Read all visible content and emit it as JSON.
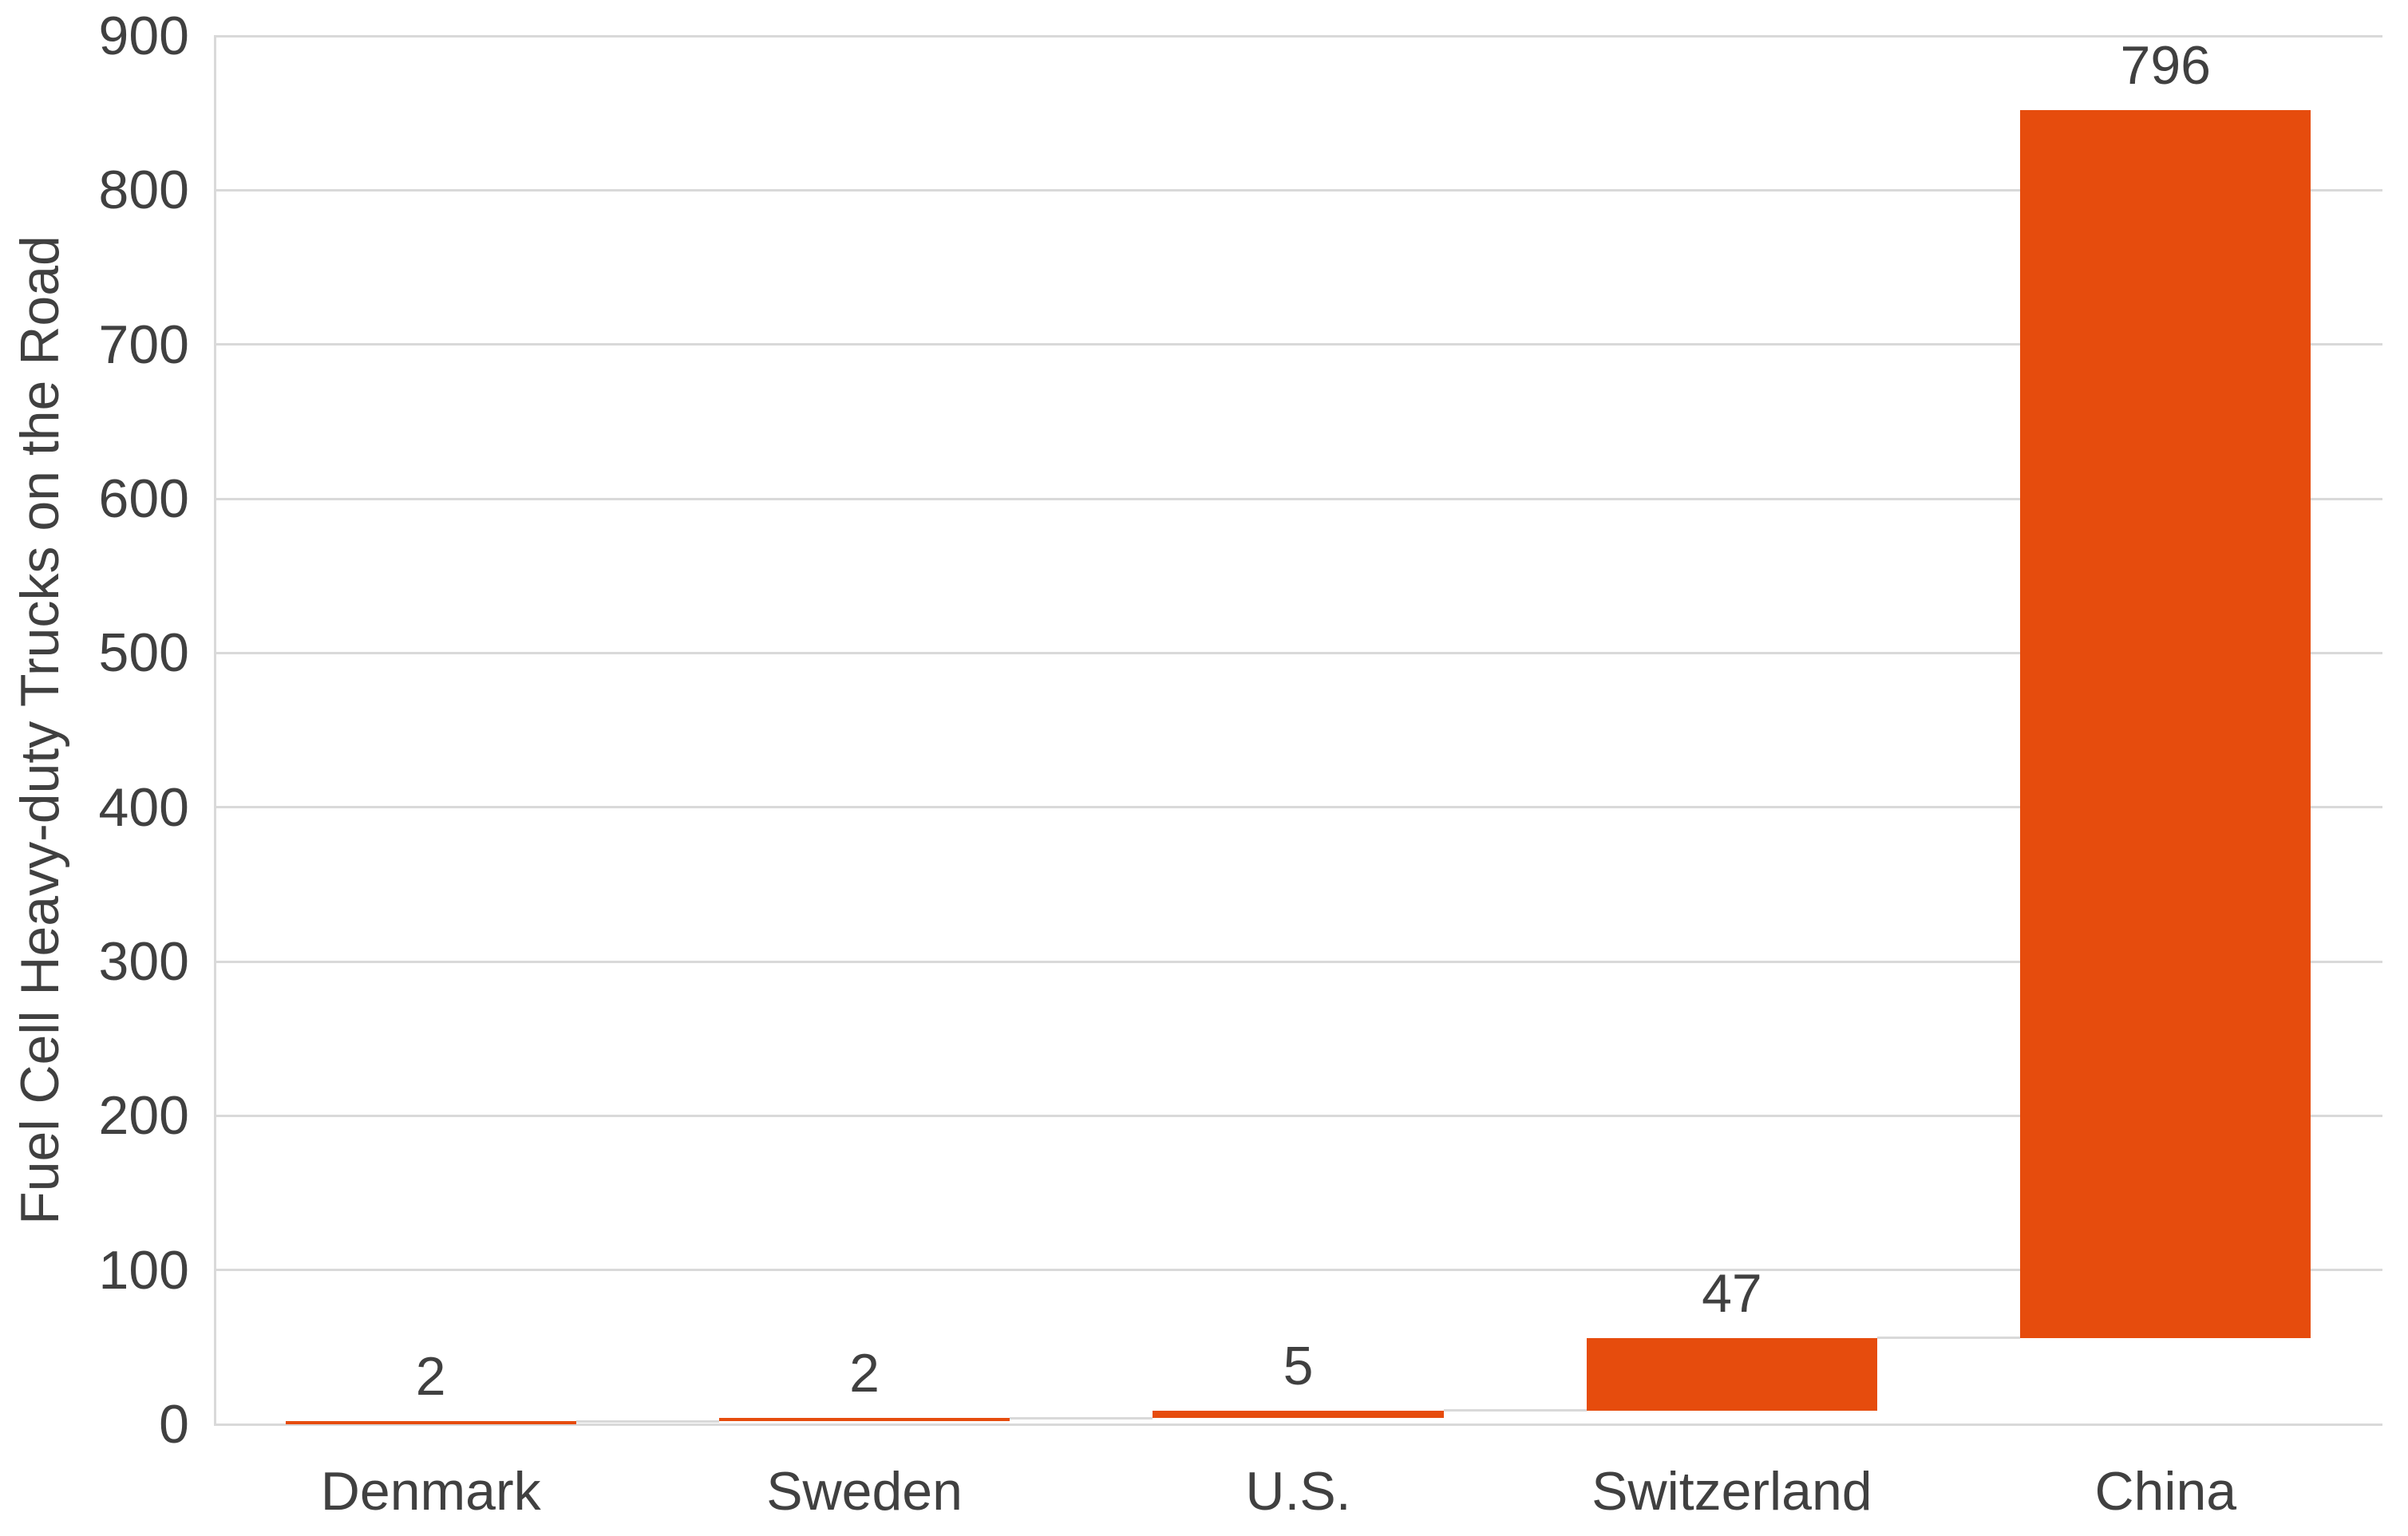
{
  "chart_data": {
    "type": "bar",
    "subtype": "waterfall",
    "title": "",
    "xlabel": "",
    "ylabel": "Fuel Cell Heavy-duty Trucks on the Road",
    "categories": [
      "Denmark",
      "Sweden",
      "U.S.",
      "Switzerland",
      "China"
    ],
    "values": [
      2,
      2,
      5,
      47,
      796
    ],
    "cumulative_start": [
      0,
      2,
      4,
      9,
      56
    ],
    "cumulative_end": [
      2,
      4,
      9,
      56,
      852
    ],
    "data_labels": [
      "2",
      "2",
      "5",
      "47",
      "796"
    ],
    "ylim": [
      0,
      900
    ],
    "ytick_interval": 100,
    "ytick_labels": [
      "0",
      "100",
      "200",
      "300",
      "400",
      "500",
      "600",
      "700",
      "800",
      "900"
    ],
    "grid": "horizontal",
    "legend": "none",
    "colors": {
      "bar": "#E64C0D",
      "gridline": "#D9D9D9",
      "axis_line": "#D9D9D9",
      "connector": "#D9D9D9",
      "text": "#404040",
      "background": "#FFFFFF"
    }
  }
}
